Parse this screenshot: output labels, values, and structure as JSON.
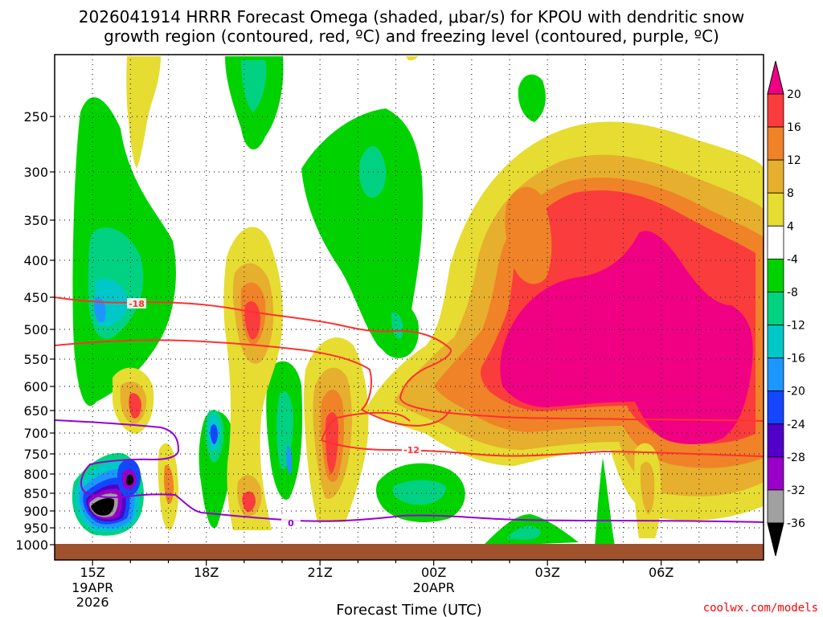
{
  "title": {
    "line1": "2026041914 HRRR Forecast Omega (shaded, μbar/s) for KPOU with dendritic snow",
    "line2": "growth region (contoured, red, ºC) and freezing level (contoured, purple, ºC)"
  },
  "credit": "coolwx.com/models",
  "colors": {
    "m36": "#000000",
    "m32": "#a0a0a0",
    "m28": "#9800c8",
    "m24": "#5000c8",
    "m20": "#1446ff",
    "m16": "#1e96ff",
    "m12": "#00c8c8",
    "m8": "#00d282",
    "m4": "#00d200",
    "zero": "#ffffff",
    "p4": "#e6dc32",
    "p8": "#e6af2d",
    "p12": "#f08228",
    "p16": "#fa3c3c",
    "p20": "#f00082",
    "ground": "#a0522d",
    "dgz": "#ff3030",
    "freezing": "#9400d3"
  },
  "chart_data": {
    "type": "heatmap",
    "xlabel": "Forecast Time (UTC)",
    "ylabel": "",
    "x_ticks": [
      {
        "label": "15Z",
        "hour": 15,
        "sub": [
          "19APR",
          "2026"
        ]
      },
      {
        "label": "18Z",
        "hour": 18,
        "sub": []
      },
      {
        "label": "21Z",
        "hour": 21,
        "sub": []
      },
      {
        "label": "00Z",
        "hour": 24,
        "sub": [
          "20APR"
        ]
      },
      {
        "label": "03Z",
        "hour": 27,
        "sub": []
      },
      {
        "label": "06Z",
        "hour": 30,
        "sub": []
      }
    ],
    "xlim": [
      14.0,
      32.7
    ],
    "y_ticks": [
      250,
      300,
      350,
      400,
      450,
      500,
      550,
      600,
      650,
      700,
      750,
      800,
      850,
      900,
      950,
      1000
    ],
    "ylim": [
      1005,
      200
    ],
    "y_axis_reversed": true,
    "grid": true,
    "colorbar": {
      "labels": [
        "20",
        "16",
        "12",
        "8",
        "4",
        "-4",
        "-8",
        "-12",
        "-16",
        "-20",
        "-24",
        "-28",
        "-32",
        "-36"
      ],
      "levels": [
        -36,
        -32,
        -28,
        -24,
        -20,
        -16,
        -12,
        -8,
        -4,
        4,
        8,
        12,
        16,
        20
      ]
    },
    "contours": [
      {
        "label": "-18",
        "color": "dgz"
      },
      {
        "label": "-12",
        "color": "dgz"
      },
      {
        "label": "0",
        "color": "freezing"
      }
    ]
  }
}
